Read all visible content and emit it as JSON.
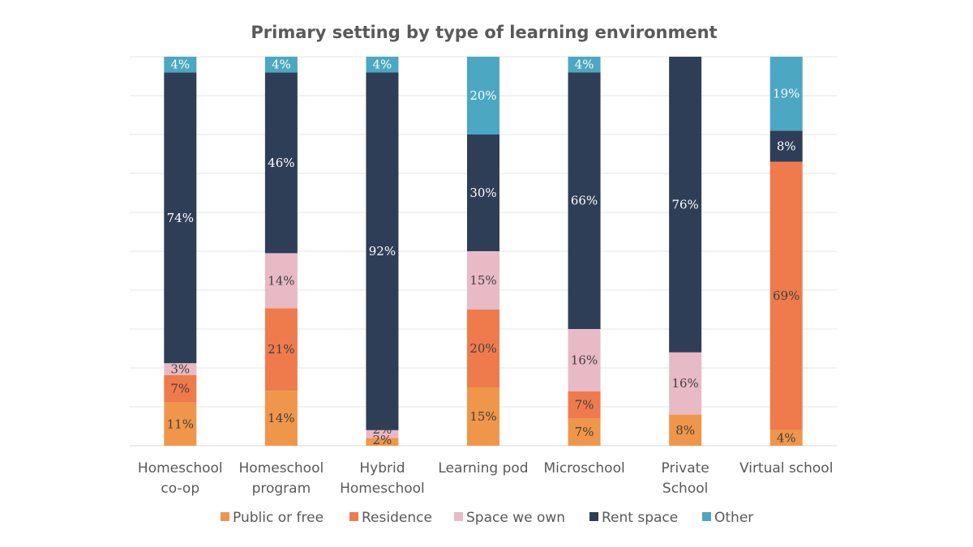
{
  "chart_data": {
    "type": "bar",
    "stacked": true,
    "title": "Primary setting by type of learning environment",
    "categories": [
      [
        "Homeschool",
        "co-op"
      ],
      [
        "Homeschool",
        "program"
      ],
      [
        "Hybrid",
        "Homeschool"
      ],
      [
        "Learning pod"
      ],
      [
        "Microschool"
      ],
      [
        "Private",
        "School"
      ],
      [
        "Virtual school"
      ]
    ],
    "ylim": [
      0,
      100
    ],
    "grid": true,
    "legend_position": "bottom",
    "series": [
      {
        "name": "Public or free",
        "color": "#f0964a",
        "label_color": "#404040",
        "values": [
          11,
          14,
          2,
          15,
          7,
          8,
          4
        ],
        "labels": [
          "11%",
          "14%",
          "2%",
          "15%",
          "7%",
          "8%",
          "4%"
        ]
      },
      {
        "name": "Residence",
        "color": "#ef7b4d",
        "label_color": "#404040",
        "values": [
          7,
          21,
          0,
          20,
          7,
          0,
          69
        ],
        "labels": [
          "7%",
          "21%",
          "",
          "20%",
          "7%",
          "",
          "69%"
        ]
      },
      {
        "name": "Space we own",
        "color": "#e8bac5",
        "label_color": "#404040",
        "values": [
          3,
          14,
          2,
          15,
          16,
          16,
          0
        ],
        "labels": [
          "3%",
          "14%",
          "2%",
          "15%",
          "16%",
          "16%",
          ""
        ]
      },
      {
        "name": "Rent space",
        "color": "#2f3e57",
        "label_color": "#ffffff",
        "values": [
          74,
          46,
          92,
          30,
          66,
          76,
          8
        ],
        "labels": [
          "74%",
          "46%",
          "92%",
          "30%",
          "66%",
          "76%",
          "8%"
        ]
      },
      {
        "name": "Other",
        "color": "#4ba7c2",
        "label_color": "#ffffff",
        "values": [
          4,
          4,
          4,
          20,
          4,
          0,
          19
        ],
        "labels": [
          "4%",
          "4%",
          "4%",
          "20%",
          "4%",
          "",
          "19%"
        ]
      }
    ]
  }
}
